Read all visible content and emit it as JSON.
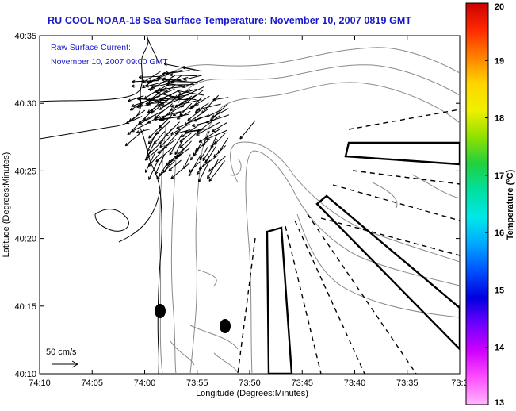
{
  "title": "RU COOL  NOAA-18  Sea Surface Temperature:  November 10, 2007 0819 GMT",
  "annotation": {
    "line1": "Raw Surface Current:",
    "line2": "November 10, 2007 09:00 GMT",
    "color": "#1a1acc"
  },
  "axes": {
    "xlabel": "Longitude (Degrees:Minutes)",
    "ylabel": "Latitude (Degrees:Minutes)",
    "x_ticks": [
      "74:10",
      "74:05",
      "74:00",
      "73:55",
      "73:50",
      "73:45",
      "73:40",
      "73:35",
      "73:3"
    ],
    "y_ticks": [
      "40:35",
      "40:30",
      "40:25",
      "40:20",
      "40:15",
      "40:10"
    ]
  },
  "scale": {
    "label": "50 cm/s"
  },
  "colorbar": {
    "label": "Temperature (°C)",
    "ticks": [
      "20",
      "19",
      "18",
      "17",
      "16",
      "15",
      "14",
      "13"
    ],
    "stops": [
      "#cc0000",
      "#ff2a00",
      "#ff8000",
      "#ffd500",
      "#f0f000",
      "#90e000",
      "#20d040",
      "#00e0a0",
      "#00e8e8",
      "#00a8ff",
      "#0050ff",
      "#0000e0",
      "#7000ff",
      "#d000ff",
      "#ff50ff",
      "#ffb8ff"
    ]
  }
}
